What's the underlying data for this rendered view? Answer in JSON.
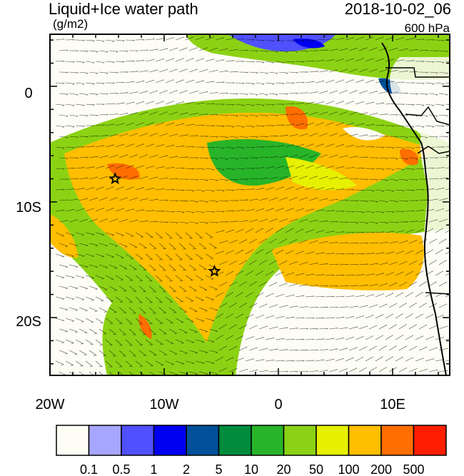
{
  "header": {
    "title": "Liquid+Ice water path",
    "units": "(g/m2)",
    "datetime": "2018-10-02_06",
    "level": "600 hPa"
  },
  "map": {
    "lon_labels": [
      "20W",
      "10W",
      "0",
      "10E"
    ],
    "lat_labels": [
      "0",
      "10S",
      "20S"
    ],
    "lon_range": [
      -20,
      15
    ],
    "lat_range": [
      -25,
      4.5
    ],
    "stars": [
      {
        "lon": -14.3,
        "lat": -8.0
      },
      {
        "lon": -5.6,
        "lat": -16.0
      }
    ]
  },
  "colorbar": {
    "colors": [
      "#fdfdf5",
      "#a6a6ff",
      "#5050ff",
      "#0000f0",
      "#00509a",
      "#008c3c",
      "#28b428",
      "#8cd214",
      "#e6f000",
      "#ffbe00",
      "#ff6e00",
      "#ff1e00"
    ],
    "labels": [
      "0.1",
      "0.5",
      "1",
      "2",
      "5",
      "10",
      "20",
      "50",
      "100",
      "200",
      "500"
    ]
  }
}
